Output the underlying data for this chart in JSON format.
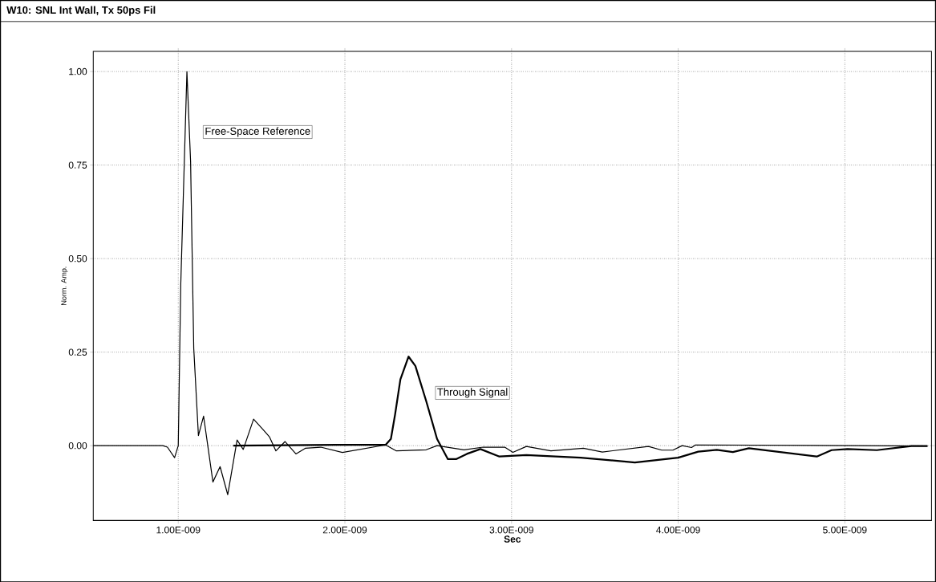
{
  "chart_data": {
    "type": "line",
    "title": "W10: SNL Int Wall, Tx 50ps Fil",
    "xlabel": "Sec",
    "ylabel": "Norm. Amp.",
    "xlim": [
      4.9e-10,
      5.52e-09
    ],
    "ylim": [
      -0.2,
      1.054
    ],
    "xticks": [
      {
        "value": 1e-09,
        "label": "1.00E-009"
      },
      {
        "value": 2e-09,
        "label": "2.00E-009"
      },
      {
        "value": 3e-09,
        "label": "3.00E-009"
      },
      {
        "value": 4e-09,
        "label": "4.00E-009"
      },
      {
        "value": 5e-09,
        "label": "5.00E-009"
      }
    ],
    "yticks": [
      {
        "value": 0,
        "label": "0.00"
      },
      {
        "value": 0.25,
        "label": "0.25"
      },
      {
        "value": 0.5,
        "label": "0.50"
      },
      {
        "value": 0.75,
        "label": "0.75"
      },
      {
        "value": 1,
        "label": "1.00"
      }
    ],
    "grid": true,
    "legend": false,
    "series": [
      {
        "name": "Free-Space Reference",
        "color": "#000000",
        "x": [
          4.9e-10,
          9.07e-10,
          9.35e-10,
          9.78e-10,
          1e-09,
          1.015e-09,
          1.052e-09,
          1.074e-09,
          1.093e-09,
          1.121e-09,
          1.152e-09,
          1.208e-09,
          1.251e-09,
          1.297e-09,
          1.353e-09,
          1.39e-09,
          1.452e-09,
          1.511e-09,
          1.548e-09,
          1.586e-09,
          1.641e-09,
          1.706e-09,
          1.762e-09,
          1.855e-09,
          1.985e-09,
          2.244e-09,
          2.309e-09,
          2.488e-09,
          2.553e-09,
          2.715e-09,
          2.829e-09,
          2.959e-09,
          3.008e-09,
          3.089e-09,
          3.236e-09,
          3.431e-09,
          3.545e-09,
          3.821e-09,
          3.902e-09,
          3.968e-09,
          4.024e-09,
          4.08e-09,
          4.104e-09,
          5.496e-09
        ],
        "values": [
          0,
          0,
          -0.004,
          -0.032,
          0,
          0.43,
          1.0,
          0.76,
          0.26,
          0.027,
          0.079,
          -0.097,
          -0.056,
          -0.131,
          0.015,
          -0.01,
          0.071,
          0.042,
          0.023,
          -0.014,
          0.011,
          -0.022,
          -0.007,
          -0.004,
          -0.018,
          0.002,
          -0.014,
          -0.011,
          0,
          -0.011,
          -0.004,
          -0.004,
          -0.018,
          -0.002,
          -0.014,
          -0.007,
          -0.017,
          -0.002,
          -0.012,
          -0.012,
          0,
          -0.005,
          0.002,
          -0.001
        ]
      },
      {
        "name": "Through Signal",
        "color": "#000000",
        "x": [
          1.33e-09,
          1.951e-09,
          2.244e-09,
          2.276e-09,
          2.301e-09,
          2.333e-09,
          2.382e-09,
          2.423e-09,
          2.488e-09,
          2.553e-09,
          2.618e-09,
          2.667e-09,
          2.732e-09,
          2.813e-09,
          2.927e-09,
          3.089e-09,
          3.415e-09,
          3.74e-09,
          4e-09,
          4.12e-09,
          4.232e-09,
          4.328e-09,
          4.424e-09,
          4.832e-09,
          4.92e-09,
          5.016e-09,
          5.192e-09,
          5.4e-09,
          5.496e-09
        ],
        "values": [
          0,
          0.002,
          0.002,
          0.018,
          0.083,
          0.177,
          0.238,
          0.213,
          0.119,
          0.018,
          -0.036,
          -0.036,
          -0.022,
          -0.009,
          -0.029,
          -0.025,
          -0.032,
          -0.045,
          -0.032,
          -0.016,
          -0.011,
          -0.017,
          -0.007,
          -0.029,
          -0.012,
          -0.009,
          -0.012,
          -0.001,
          -0.001
        ]
      }
    ]
  }
}
